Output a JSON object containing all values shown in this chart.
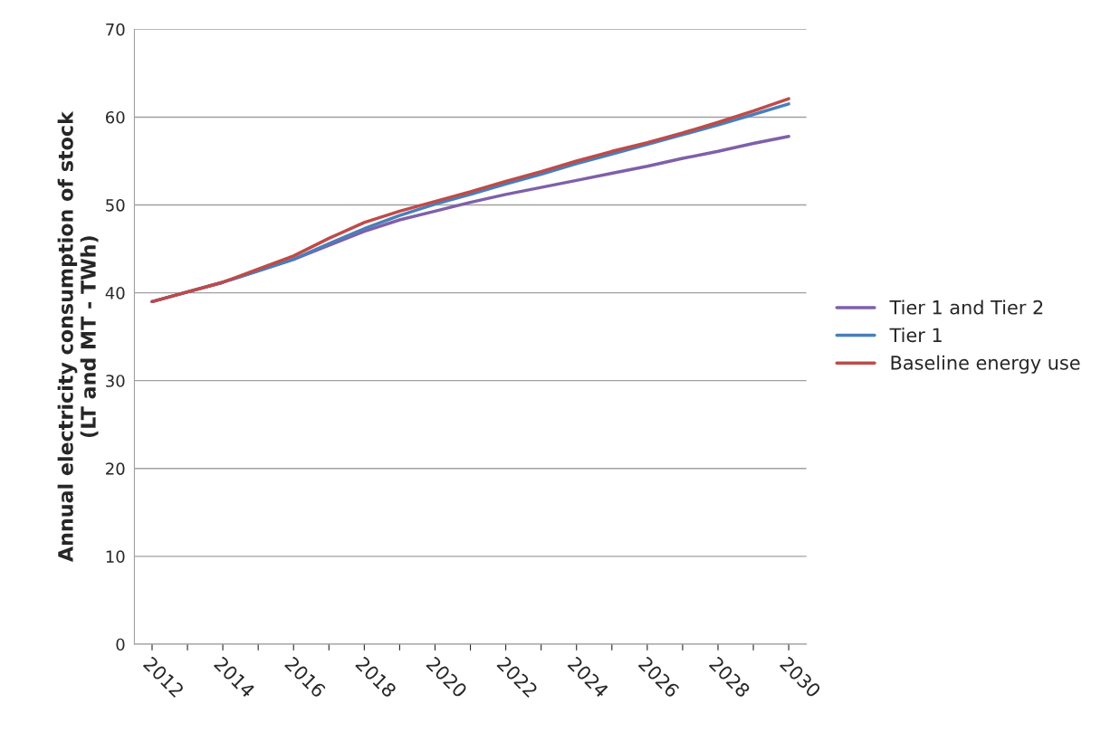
{
  "chart_data": {
    "type": "line",
    "ylabel": "Annual electricity consumption of stock\n(LT and MT - TWh)",
    "categories": [
      "2012",
      null,
      "2014",
      null,
      "2016",
      null,
      "2018",
      null,
      "2020",
      null,
      "2022",
      null,
      "2024",
      null,
      "2026",
      null,
      "2028",
      null,
      "2030"
    ],
    "series": [
      {
        "name": "Tier 1 and Tier 2",
        "color": "#7f60a8",
        "values": [
          39.0,
          40.1,
          41.2,
          42.5,
          43.8,
          45.4,
          47.0,
          48.3,
          49.3,
          50.3,
          51.2,
          52.0,
          52.8,
          53.6,
          54.4,
          55.3,
          56.1,
          57.0,
          57.8
        ]
      },
      {
        "name": "Tier 1",
        "color": "#4a7ebb",
        "values": [
          39.0,
          40.1,
          41.2,
          42.5,
          43.8,
          45.6,
          47.3,
          48.8,
          50.1,
          51.2,
          52.4,
          53.5,
          54.7,
          55.8,
          56.9,
          58.0,
          59.1,
          60.3,
          61.5
        ]
      },
      {
        "name": "Baseline energy use",
        "color": "#be4b48",
        "values": [
          39.0,
          40.1,
          41.2,
          42.7,
          44.2,
          46.2,
          48.0,
          49.3,
          50.4,
          51.5,
          52.7,
          53.8,
          55.0,
          56.1,
          57.1,
          58.2,
          59.4,
          60.7,
          62.1
        ]
      }
    ],
    "ylim": [
      0,
      70
    ],
    "yticks": [
      0,
      10,
      20,
      30,
      40,
      50,
      60,
      70
    ],
    "grid": "y",
    "legend": "right",
    "marker": "none",
    "line_style": "solid"
  }
}
